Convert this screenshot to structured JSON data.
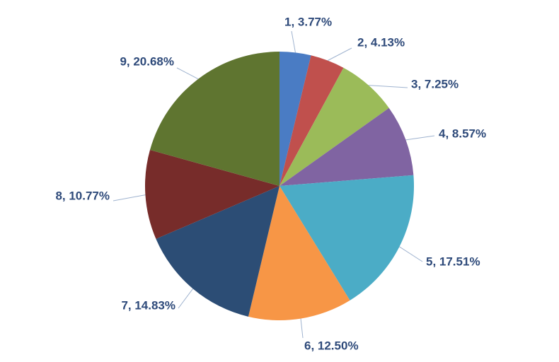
{
  "chart_data": {
    "type": "pie",
    "values": [
      3.77,
      4.13,
      7.25,
      8.57,
      17.51,
      12.5,
      14.83,
      10.77,
      20.68
    ],
    "value_labels": [
      "1, 3.77%",
      "2, 4.13%",
      "3, 7.25%",
      "4, 8.57%",
      "5, 17.51%",
      "6, 12.50%",
      "7, 14.83%",
      "8, 10.77%",
      "9, 20.68%"
    ],
    "colors": [
      "#4a7cc4",
      "#c0504d",
      "#9bbb59",
      "#8064a2",
      "#4bacc6",
      "#f79646",
      "#2c4d75",
      "#772c2a",
      "#5f7530"
    ]
  }
}
